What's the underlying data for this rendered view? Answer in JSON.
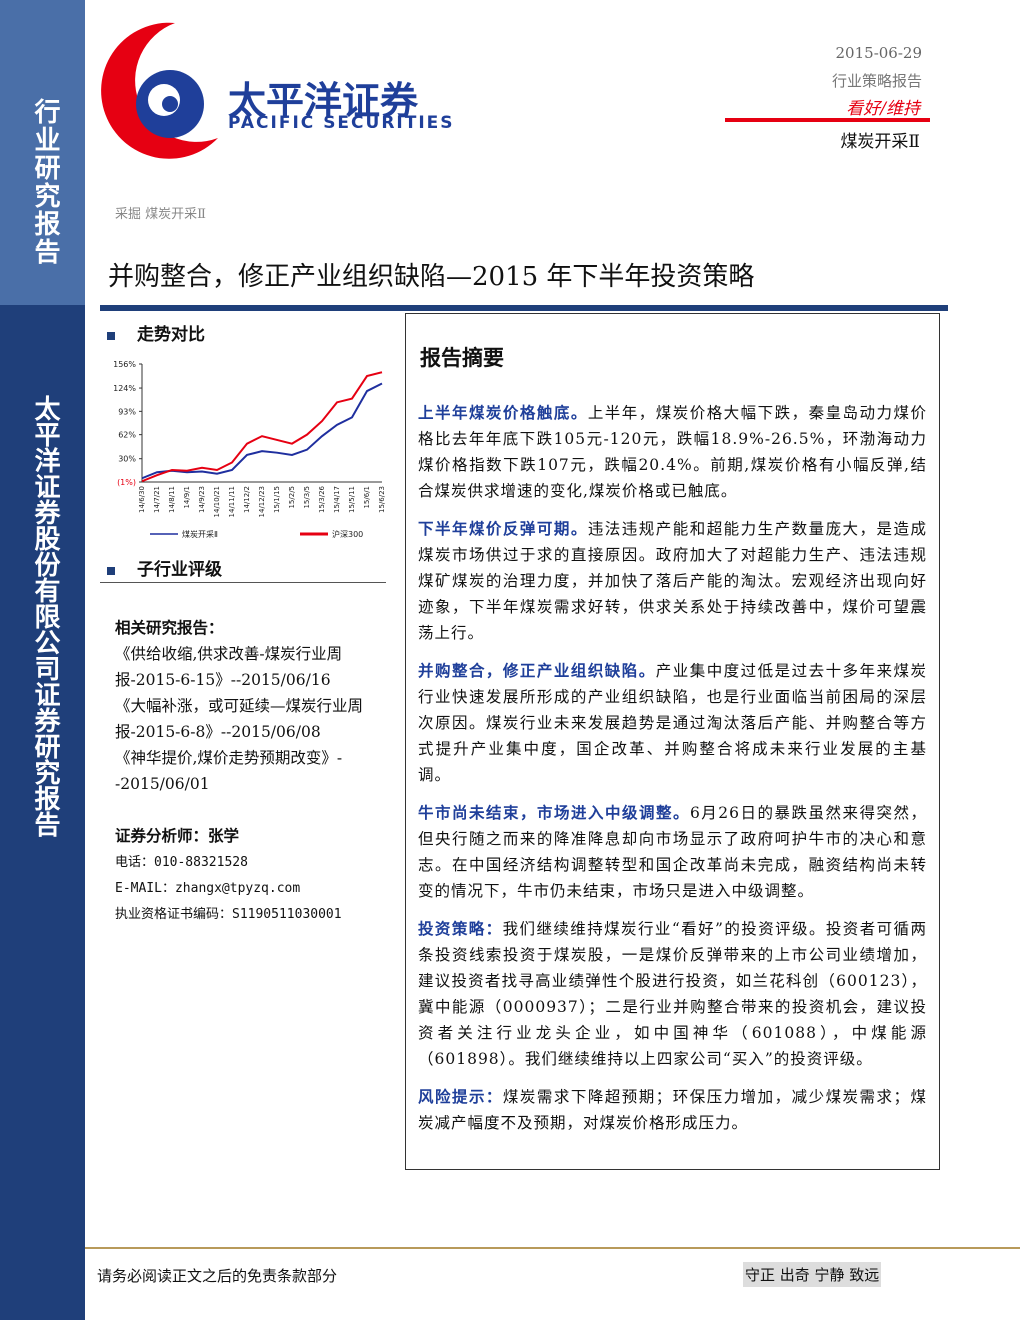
{
  "sidebar": {
    "top": "行业研究报告",
    "bottom": "太平洋证券股份有限公司证券研究报告"
  },
  "header": {
    "logo_cn": "太平洋证券",
    "logo_en": "PACIFIC SECURITIES",
    "date": "2015-06-29",
    "report_type": "行业策略报告",
    "rating": "看好/维持",
    "industry": "煤炭开采Ⅱ"
  },
  "breadcrumb": "采掘 煤炭开采Ⅱ",
  "title": "并购整合，修正产业组织缺陷—2015 年下半年投资策略",
  "trend_heading": "走势对比",
  "chart_data": {
    "type": "line",
    "categories": [
      "14/6/30",
      "14/7/21",
      "14/8/11",
      "14/9/1",
      "14/9/23",
      "14/10/21",
      "14/11/11",
      "14/12/2",
      "14/12/23",
      "15/1/15",
      "15/2/5",
      "15/3/5",
      "15/3/26",
      "15/4/17",
      "15/5/11",
      "15/6/1",
      "15/6/23"
    ],
    "series": [
      {
        "name": "煤炭开采Ⅱ",
        "color": "#1f2f9f",
        "values": [
          4,
          12,
          14,
          12,
          13,
          10,
          15,
          35,
          40,
          38,
          35,
          42,
          60,
          75,
          85,
          120,
          130
        ]
      },
      {
        "name": "沪深300",
        "color": "#e60012",
        "values": [
          0,
          8,
          15,
          14,
          18,
          15,
          25,
          50,
          60,
          55,
          50,
          62,
          80,
          105,
          110,
          140,
          145
        ]
      }
    ],
    "ylim": [
      -1,
      156
    ],
    "yticks": [
      {
        "value": -1,
        "label": "(1%)"
      },
      {
        "value": 30,
        "label": "30%"
      },
      {
        "value": 62,
        "label": "62%"
      },
      {
        "value": 93,
        "label": "93%"
      },
      {
        "value": 124,
        "label": "124%"
      },
      {
        "value": 156,
        "label": "156%"
      }
    ]
  },
  "rating_heading": "子行业评级",
  "related": {
    "heading": "相关研究报告：",
    "items": [
      "《供给收缩,供求改善-煤炭行业周报-2015-6-15》--2015/06/16",
      "《大幅补涨，或可延续—煤炭行业周报-2015-6-8》--2015/06/08",
      "《神华提价,煤价走势预期改变》--2015/06/01"
    ]
  },
  "analyst": {
    "name": "证券分析师：张学",
    "phone": "电话：010-88321528",
    "email": "E-MAIL：zhangx@tpyzq.com",
    "cert": "执业资格证书编码：S1190511030001"
  },
  "summary": {
    "heading": "报告摘要",
    "paragraphs": [
      {
        "lead": "上半年煤炭价格触底。",
        "text": "上半年，煤炭价格大幅下跌，秦皇岛动力煤价格比去年年底下跌105元-120元，跌幅18.9%-26.5%，环渤海动力煤价格指数下跌107元，跌幅20.4%。前期,煤炭价格有小幅反弹,结合煤炭供求增速的变化,煤炭价格或已触底。"
      },
      {
        "lead": "下半年煤价反弹可期。",
        "text": "违法违规产能和超能力生产数量庞大，是造成煤炭市场供过于求的直接原因。政府加大了对超能力生产、违法违规煤矿煤炭的治理力度，并加快了落后产能的淘汰。宏观经济出现向好迹象，下半年煤炭需求好转，供求关系处于持续改善中，煤价可望震荡上行。"
      },
      {
        "lead": "并购整合，修正产业组织缺陷。",
        "text": "产业集中度过低是过去十多年来煤炭行业快速发展所形成的产业组织缺陷，也是行业面临当前困局的深层次原因。煤炭行业未来发展趋势是通过淘汰落后产能、并购整合等方式提升产业集中度，国企改革、并购整合将成未来行业发展的主基调。"
      },
      {
        "lead": "牛市尚未结束，市场进入中级调整。",
        "text": "6月26日的暴跌虽然来得突然，但央行随之而来的降准降息却向市场显示了政府呵护牛市的决心和意志。在中国经济结构调整转型和国企改革尚未完成，融资结构尚未转变的情况下，牛市仍未结束，市场只是进入中级调整。"
      },
      {
        "lead": "投资策略：",
        "text": "我们继续维持煤炭行业“看好”的投资评级。投资者可循两条投资线索投资于煤炭股，一是煤价反弹带来的上市公司业绩增加，建议投资者找寻高业绩弹性个股进行投资，如兰花科创（600123），冀中能源（0000937）；二是行业并购整合带来的投资机会，建议投资者关注行业龙头企业，如中国神华（601088），中煤能源（601898）。我们继续维持以上四家公司“买入”的投资评级。"
      },
      {
        "lead": "风险提示：",
        "text": "煤炭需求下降超预期；环保压力增加，减少煤炭需求；煤炭减产幅度不及预期，对煤炭价格形成压力。"
      }
    ]
  },
  "footer": {
    "disclaimer": "请务必阅读正文之后的免责条款部分",
    "motto": "守正 出奇 宁静 致远"
  }
}
